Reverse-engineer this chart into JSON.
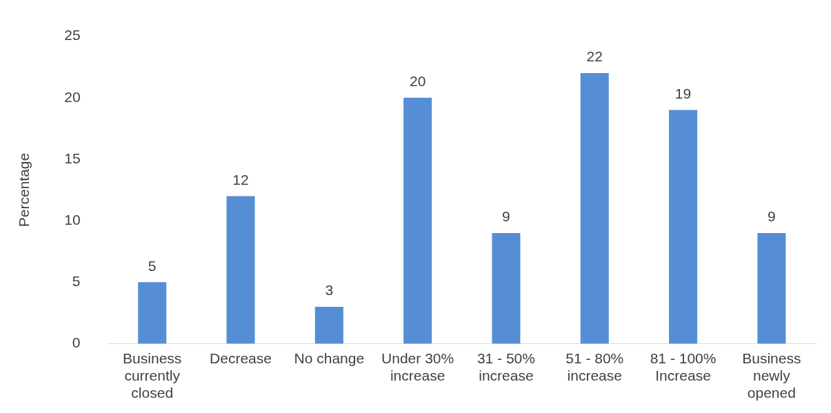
{
  "chart_data": {
    "type": "bar",
    "ylabel": "Percentage",
    "categories": [
      "Business currently closed",
      "Decrease",
      "No change",
      "Under 30% increase",
      "31 - 50% increase",
      "51 - 80% increase",
      "81 - 100% Increase",
      "Business newly opened"
    ],
    "values": [
      5,
      12,
      3,
      20,
      9,
      22,
      19,
      9
    ],
    "color": "#558ed5",
    "ylim": [
      0,
      25
    ],
    "yticks": [
      0,
      5,
      10,
      15,
      20,
      25
    ],
    "grid": false,
    "legend": false,
    "data_labels": true
  }
}
